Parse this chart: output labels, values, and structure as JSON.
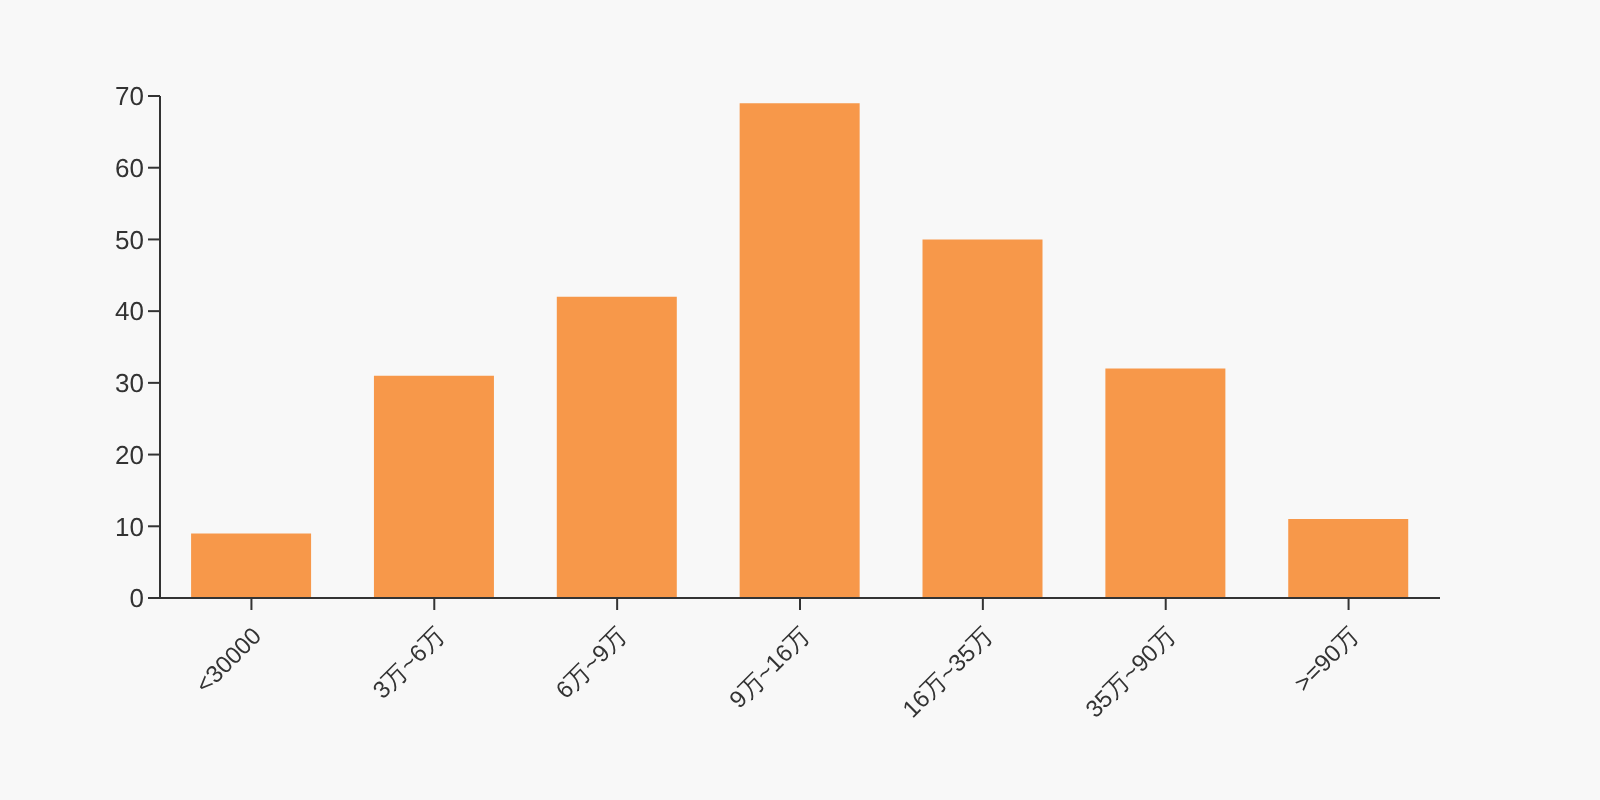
{
  "chart_data": {
    "type": "bar",
    "categories": [
      "<30000",
      "3万~6万",
      "6万~9万",
      "9万~16万",
      "16万~35万",
      "35万~90万",
      ">=90万"
    ],
    "values": [
      9,
      31,
      42,
      69,
      50,
      32,
      11
    ],
    "color": "#f7984a",
    "ylim": [
      0,
      70
    ],
    "yticks": [
      0,
      10,
      20,
      30,
      40,
      50,
      60,
      70
    ],
    "grid": false,
    "legend": false
  }
}
